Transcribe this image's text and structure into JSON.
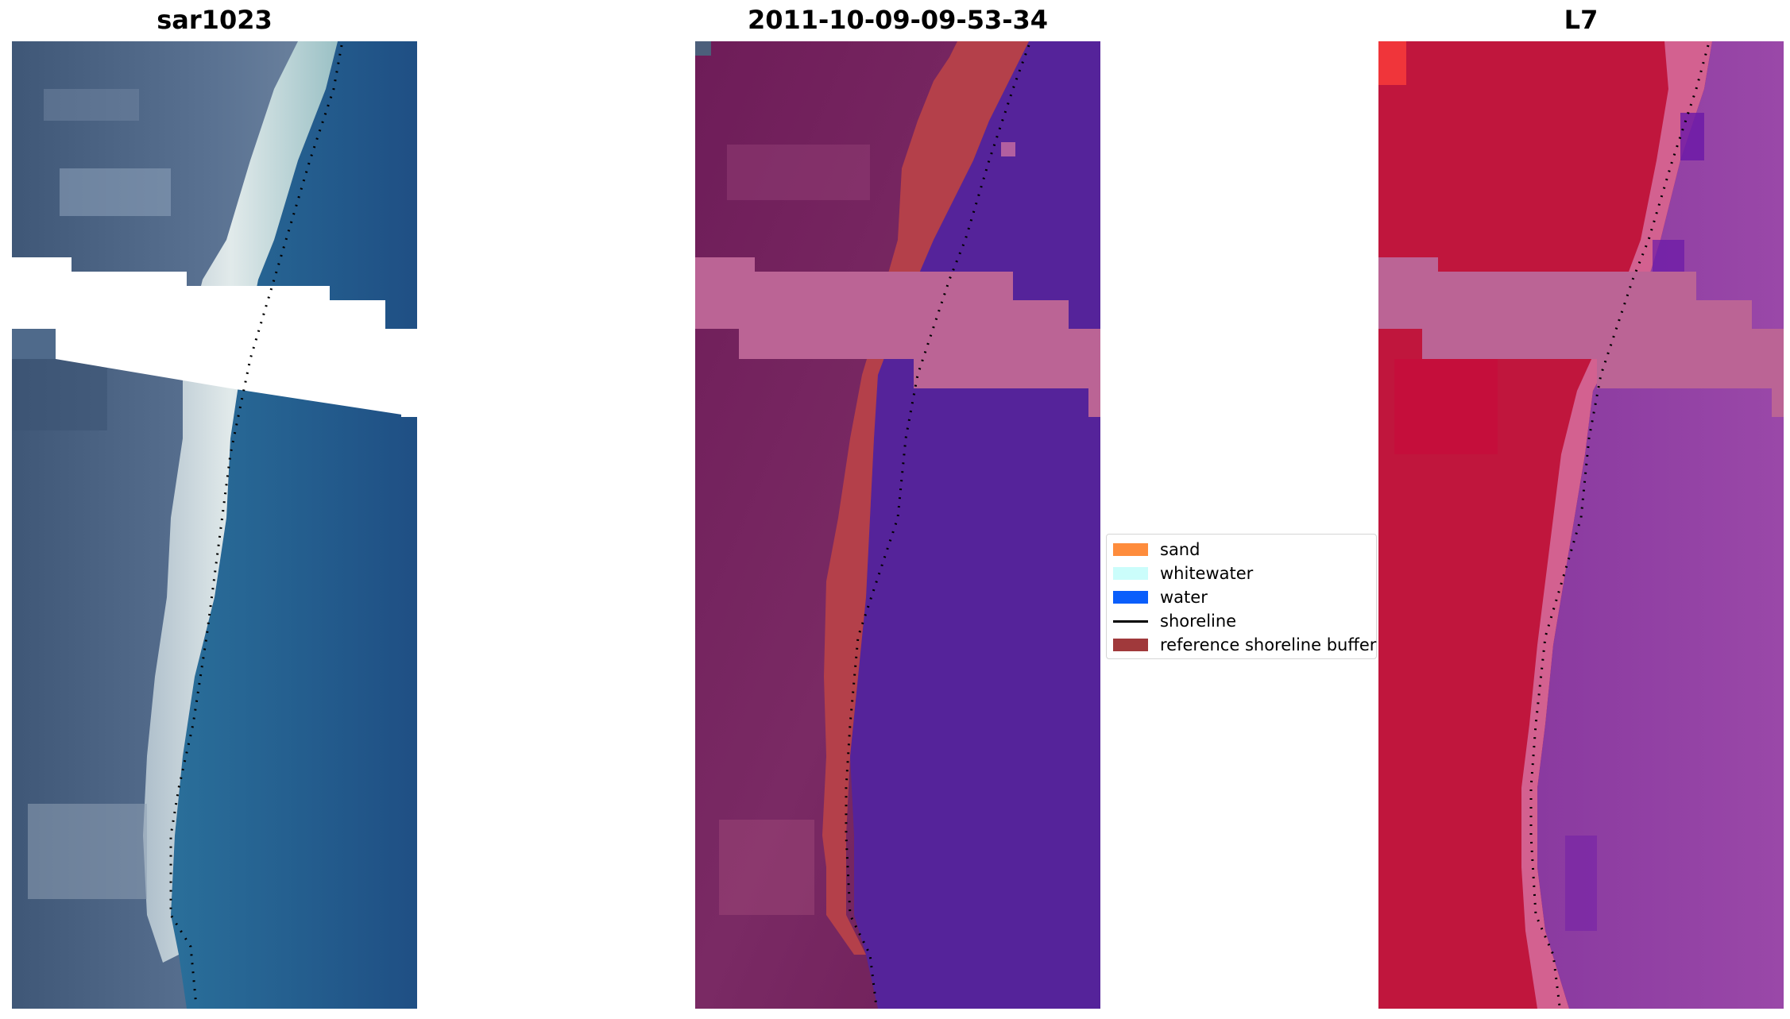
{
  "panels": [
    {
      "title": "sar1023",
      "kind": "rgb",
      "colors": {
        "land": "#4f6a8b",
        "land_light": "#8fa2b8",
        "sand": "#e8f0ee",
        "sand_edge": "#b9d2da",
        "water": "#2a6996",
        "water_deep": "#225683"
      }
    },
    {
      "title": "2011-10-09-09-53-34",
      "kind": "classified",
      "colors": {
        "land": "#741e5c",
        "land_light": "#8d3a72",
        "buffer": "#b64148",
        "water": "#54239a",
        "nodata": "#bb6495"
      }
    },
    {
      "title": "L7",
      "kind": "mndwi",
      "colors": {
        "land": "#c0163d",
        "land_light": "#d83a55",
        "transition": "#d1608a",
        "water": "#8b2fa0",
        "water_deep": "#6d17a7",
        "nodata": "#bb6495"
      }
    }
  ],
  "legend": {
    "items": [
      {
        "label": "sand",
        "color": "#fe8c3c",
        "type": "patch"
      },
      {
        "label": "whitewater",
        "color": "#cbfdfb",
        "type": "patch"
      },
      {
        "label": "water",
        "color": "#0a5efb",
        "type": "patch"
      },
      {
        "label": "shoreline",
        "color": "#000000",
        "type": "line"
      },
      {
        "label": "reference shoreline buffer",
        "color": "#a0393b",
        "type": "patch"
      }
    ]
  }
}
